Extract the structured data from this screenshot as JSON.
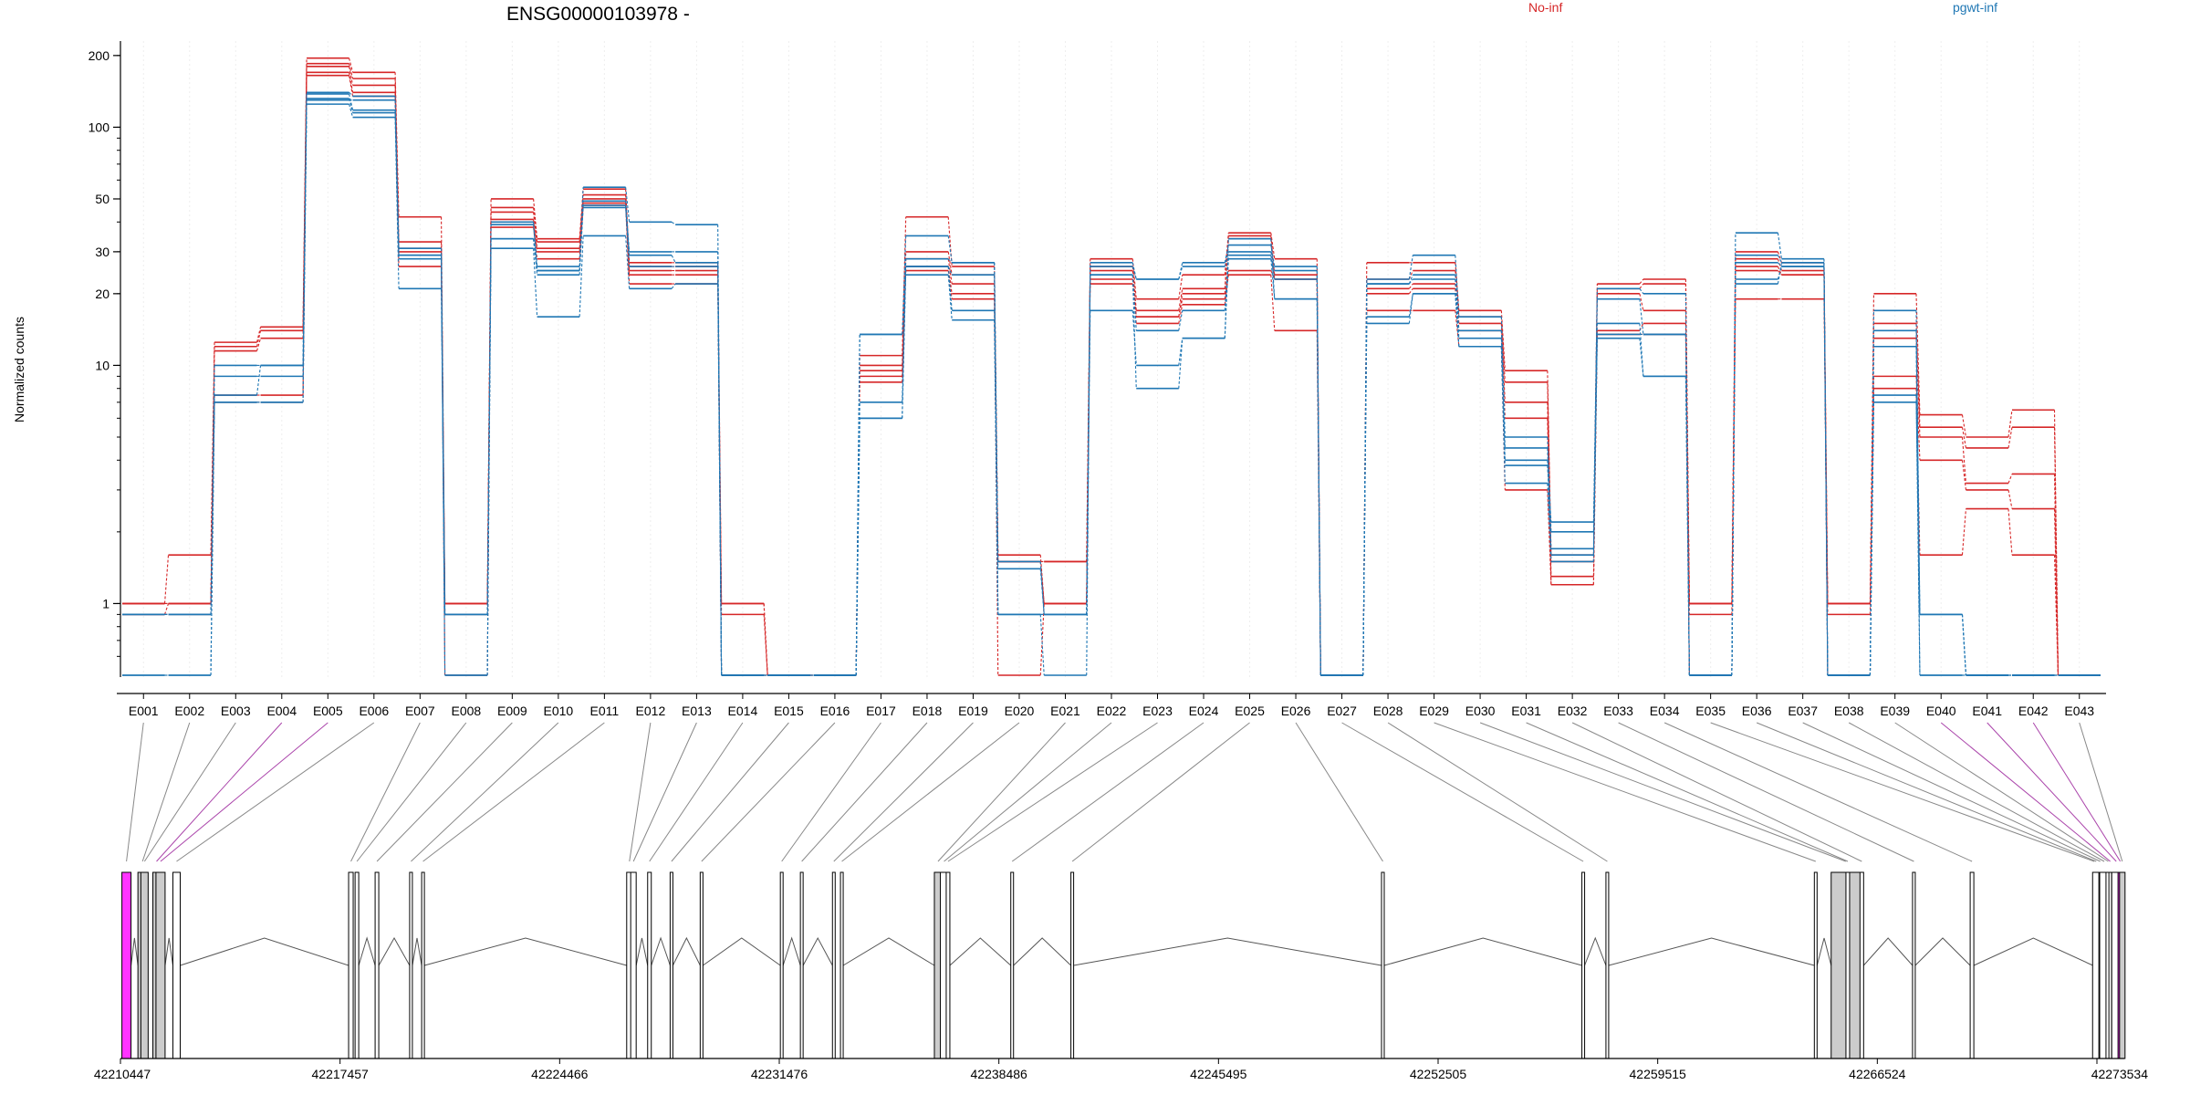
{
  "chart_data": {
    "type": "line",
    "title": "ENSG00000103978 -",
    "ylabel": "Normalized counts",
    "yscale": "log",
    "ylim": [
      0.5,
      230
    ],
    "yticks": [
      1,
      10,
      20,
      30,
      50,
      100,
      200
    ],
    "legend_placement": "top-right",
    "legend": [
      {
        "name": "No-inf",
        "color": "#d62728"
      },
      {
        "name": "pgwt-inf",
        "color": "#1f77b4"
      }
    ],
    "categories": [
      "E001",
      "E002",
      "E003",
      "E004",
      "E005",
      "E006",
      "E007",
      "E008",
      "E009",
      "E010",
      "E011",
      "E012",
      "E013",
      "E014",
      "E015",
      "E016",
      "E017",
      "E018",
      "E019",
      "E020",
      "E021",
      "E022",
      "E023",
      "E024",
      "E025",
      "E026",
      "E027",
      "E028",
      "E029",
      "E030",
      "E031",
      "E032",
      "E033",
      "E034",
      "E035",
      "E036",
      "E037",
      "E038",
      "E039",
      "E040",
      "E041",
      "E042",
      "E043"
    ],
    "series": [
      {
        "group": "No-inf",
        "values": [
          1.0,
          1.6,
          12.5,
          14.5,
          195,
          170,
          42,
          1.0,
          50,
          34,
          55,
          27,
          27,
          1.0,
          0.5,
          0.5,
          11,
          42,
          26,
          1.6,
          1.0,
          28,
          19,
          24,
          36,
          28,
          0.5,
          27,
          27,
          17,
          9.5,
          1.6,
          22,
          23,
          1.0,
          30,
          27,
          1.0,
          20,
          6.2,
          5.0,
          6.5,
          0.5
        ]
      },
      {
        "group": "No-inf",
        "values": [
          1.0,
          1.0,
          12.0,
          14.0,
          185,
          160,
          33,
          1.0,
          46,
          33,
          52,
          26,
          26,
          0.5,
          0.5,
          0.5,
          10,
          30,
          24,
          1.5,
          1.5,
          26,
          17,
          21,
          35,
          24,
          0.5,
          23,
          25,
          16,
          8.5,
          1.5,
          21,
          22,
          1.0,
          28,
          25,
          1.0,
          15,
          5.5,
          4.5,
          5.5,
          0.5
        ]
      },
      {
        "group": "No-inf",
        "values": [
          0.9,
          1.0,
          11.5,
          13.0,
          180,
          150,
          31,
          0.5,
          44,
          31,
          50,
          25,
          25,
          0.5,
          0.5,
          0.5,
          9.5,
          28,
          22,
          0.5,
          1.0,
          25,
          16,
          20,
          34,
          23,
          0.5,
          21,
          22,
          15,
          7.0,
          1.3,
          20,
          17,
          0.5,
          26,
          24,
          0.5,
          13,
          5.0,
          3.2,
          3.5,
          0.5
        ]
      },
      {
        "group": "No-inf",
        "values": [
          1.0,
          1.0,
          7.5,
          7.5,
          170,
          140,
          30,
          1.0,
          41,
          30,
          48,
          24,
          24,
          1.0,
          0.5,
          0.5,
          9,
          26,
          20,
          1.5,
          1.5,
          23,
          16,
          19,
          25,
          23,
          0.5,
          20,
          21,
          14,
          6.0,
          1.2,
          14,
          15,
          1.0,
          25,
          24,
          1.0,
          9,
          4.0,
          3.0,
          2.5,
          0.5
        ]
      },
      {
        "group": "No-inf",
        "values": [
          0.9,
          0.9,
          7.0,
          7.0,
          165,
          135,
          26,
          0.9,
          38,
          28,
          47,
          22,
          22,
          0.9,
          0.5,
          0.5,
          8.5,
          25,
          19,
          1.5,
          1.0,
          22,
          15,
          18,
          24,
          14,
          0.5,
          17,
          17,
          12,
          3.0,
          1.2,
          13.5,
          13.5,
          0.9,
          19,
          19,
          0.9,
          8,
          1.6,
          2.5,
          1.6,
          0.5
        ]
      },
      {
        "group": "pgwt-inf",
        "values": [
          0.9,
          0.9,
          10,
          10,
          140,
          135,
          31,
          0.9,
          40,
          26,
          56,
          40,
          39,
          0.5,
          0.5,
          0.5,
          13.5,
          35,
          27,
          1.5,
          0.9,
          27,
          23,
          27,
          32,
          26,
          0.5,
          23,
          29,
          16,
          5.0,
          2.0,
          21,
          20,
          0.5,
          36,
          28,
          0.5,
          17,
          0.9,
          0.5,
          0.5,
          0.5
        ]
      },
      {
        "group": "pgwt-inf",
        "values": [
          0.9,
          0.9,
          9,
          9,
          138,
          118,
          29,
          0.9,
          39,
          25,
          49,
          30,
          30,
          0.5,
          0.5,
          0.5,
          7,
          28,
          27,
          1.4,
          0.9,
          26,
          23,
          26,
          30,
          25,
          0.5,
          22,
          24,
          14,
          4.5,
          1.7,
          19,
          13.5,
          0.5,
          29,
          27,
          0.5,
          14,
          0.9,
          0.5,
          0.5,
          0.5
        ]
      },
      {
        "group": "pgwt-inf",
        "values": [
          0.5,
          0.5,
          7.5,
          10,
          132,
          115,
          28,
          0.5,
          34,
          24,
          47,
          26,
          26,
          0.5,
          0.5,
          0.5,
          6,
          26,
          24,
          0.9,
          0.9,
          24,
          14,
          17,
          29,
          23,
          0.5,
          22,
          23,
          13,
          4.0,
          1.6,
          13.5,
          13.5,
          0.5,
          27,
          26,
          0.5,
          12,
          0.5,
          0.5,
          0.5,
          0.5
        ]
      },
      {
        "group": "pgwt-inf",
        "values": [
          0.9,
          0.9,
          7.0,
          7.0,
          125,
          110,
          21,
          0.9,
          31,
          16,
          35,
          21,
          22,
          0.5,
          0.5,
          0.5,
          13.5,
          24,
          15.5,
          0.9,
          0.9,
          17,
          10,
          13,
          28,
          19,
          0.5,
          15,
          20,
          12,
          3.2,
          1.5,
          13,
          9,
          0.5,
          23,
          26,
          0.5,
          7,
          0.9,
          0.5,
          0.5,
          0.5
        ]
      },
      {
        "group": "pgwt-inf",
        "values": [
          0.5,
          0.5,
          7,
          7,
          130,
          130,
          29,
          0.5,
          34,
          25,
          46,
          29,
          27,
          0.5,
          0.5,
          0.5,
          6,
          26,
          17,
          0.9,
          0.5,
          24,
          8,
          13,
          34,
          19,
          0.5,
          16,
          20,
          12,
          3.8,
          2.2,
          15,
          9,
          0.5,
          22,
          27,
          0.5,
          7.5,
          0.5,
          0.5,
          0.5,
          0.5
        ]
      }
    ],
    "genomic_axis": {
      "tick_labels": [
        "42210447",
        "42217457",
        "42224466",
        "42231476",
        "42238486",
        "42245495",
        "42252505",
        "42259515",
        "42266524",
        "42273534"
      ]
    }
  }
}
